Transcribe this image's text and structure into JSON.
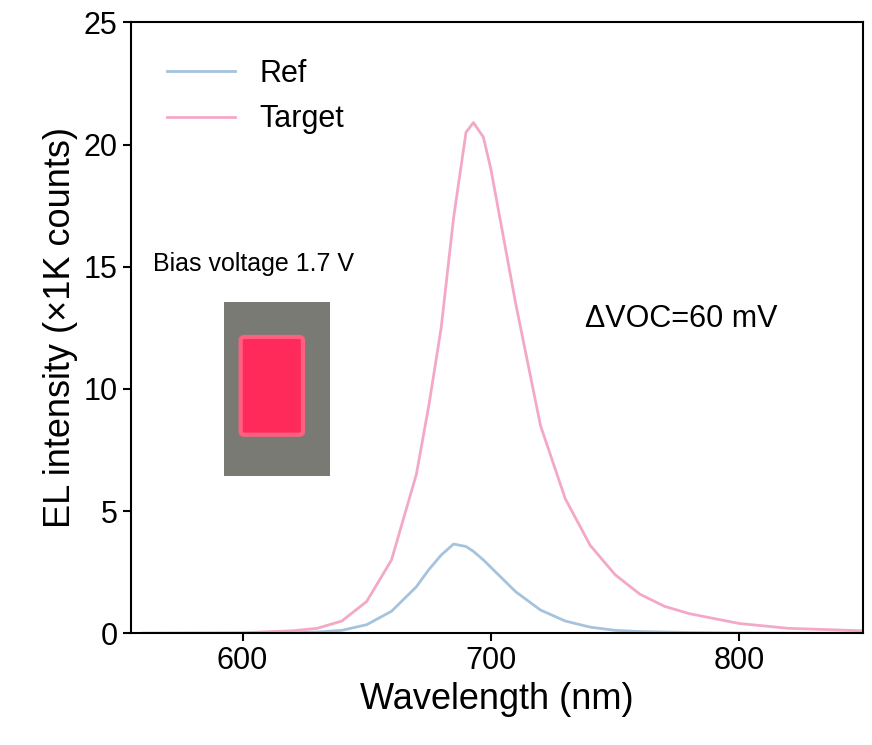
{
  "chart_data": {
    "type": "line",
    "x_label": "Wavelength (nm)",
    "y_label": "EL intensity (×1K counts)",
    "annotations": [
      "Bias voltage 1.7 V",
      "ΔVOC=60 mV"
    ],
    "x": [
      560,
      600,
      620,
      630,
      640,
      650,
      660,
      670,
      675,
      680,
      685,
      690,
      693,
      697,
      700,
      710,
      720,
      730,
      740,
      750,
      760,
      770,
      780,
      800,
      820,
      850
    ],
    "series": [
      {
        "name": "Ref",
        "color": "#a5c3dc",
        "values": [
          0,
          0,
          0.02,
          0.05,
          0.12,
          0.35,
          0.9,
          1.9,
          2.6,
          3.2,
          3.65,
          3.55,
          3.35,
          3.0,
          2.7,
          1.7,
          0.95,
          0.5,
          0.25,
          0.12,
          0.07,
          0.05,
          0.03,
          0.01,
          0,
          0
        ]
      },
      {
        "name": "Target",
        "color": "#f4a8c8",
        "values": [
          0,
          0.02,
          0.1,
          0.2,
          0.5,
          1.3,
          3.0,
          6.5,
          9.3,
          12.5,
          17.0,
          20.5,
          20.9,
          20.3,
          19.0,
          13.5,
          8.5,
          5.5,
          3.6,
          2.4,
          1.6,
          1.1,
          0.8,
          0.4,
          0.2,
          0.1
        ]
      }
    ],
    "xlim": [
      555,
      850
    ],
    "xticks": [
      600,
      700,
      800
    ],
    "ylim": [
      0,
      25
    ],
    "yticks": [
      0,
      5,
      10,
      15,
      20,
      25
    ],
    "legend": "upper left",
    "grid": false
  }
}
